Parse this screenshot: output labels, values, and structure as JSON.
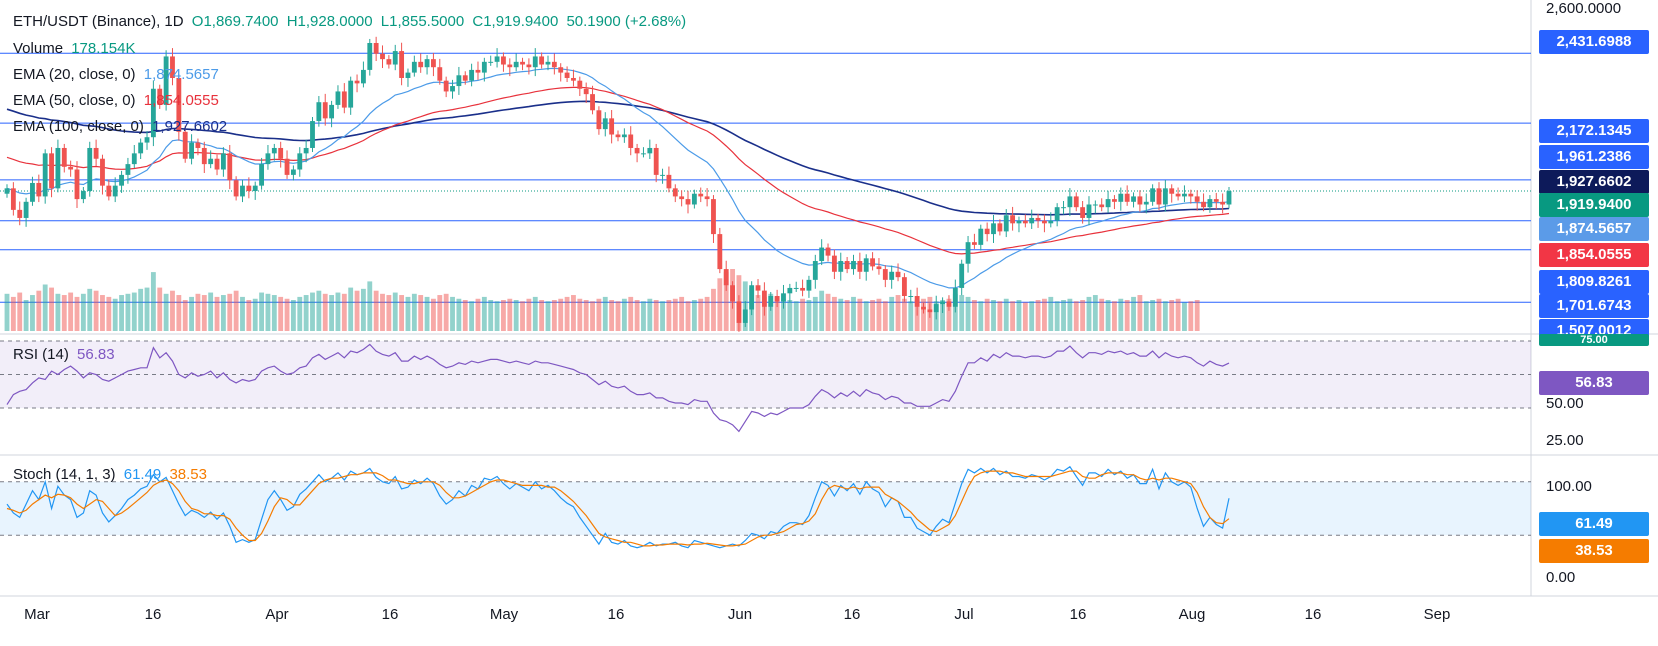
{
  "header": {
    "symbol": "ETH/USDT (Binance), 1D",
    "open": "O1,869.7400",
    "high": "H1,928.0000",
    "low": "L1,855.5000",
    "close": "C1,919.9400",
    "change": "50.1900 (+2.68%)"
  },
  "legend": {
    "volume_label": "Volume",
    "volume_value": "178.154K",
    "ema20_label": "EMA (20, close, 0)",
    "ema20_value": "1,874.5657",
    "ema50_label": "EMA (50, close, 0)",
    "ema50_value": "1,854.0555",
    "ema100_label": "EMA (100, close, 0)",
    "ema100_value": "1,927.6602",
    "rsi_label": "RSI (14)",
    "rsi_value": "56.83",
    "stoch_label": "Stoch (14, 1, 3)",
    "stoch_k_value": "61.49",
    "stoch_d_value": "38.53"
  },
  "price_axis": {
    "top_label": "2,600.0000",
    "tags": [
      {
        "value": "2,431.6988",
        "kind": "level"
      },
      {
        "value": "2,172.1345",
        "kind": "level"
      },
      {
        "value": "1,961.2386",
        "kind": "level"
      },
      {
        "value": "1,927.6602",
        "kind": "ema100"
      },
      {
        "value": "1,919.9400",
        "kind": "close"
      },
      {
        "value": "1,874.5657",
        "kind": "ema20"
      },
      {
        "value": "1,854.0555",
        "kind": "ema50"
      },
      {
        "value": "1,809.8261",
        "kind": "level"
      },
      {
        "value": "1,701.6743",
        "kind": "level"
      },
      {
        "value": "1,507.0012",
        "kind": "level"
      }
    ],
    "volume_tag": "75.00"
  },
  "rsi_axis": {
    "tick_75": "75.00",
    "tick_50": "50.00",
    "tick_25": "25.00",
    "tag": "56.83"
  },
  "stoch_axis": {
    "tick_100": "100.00",
    "tick_0": "0.00",
    "k_tag": "61.49",
    "d_tag": "38.53"
  },
  "time_axis": [
    "Mar",
    "16",
    "Apr",
    "16",
    "May",
    "16",
    "Jun",
    "16",
    "Jul",
    "16",
    "Aug",
    "16",
    "Sep"
  ],
  "colors": {
    "up": "#26a69a",
    "down": "#ef5350",
    "ema20": "#4c9be8",
    "ema50": "#e8323c",
    "ema100": "#1a2f8a",
    "rsi": "#7e57c2",
    "stoch_k": "#2196f3",
    "stoch_d": "#f57c00",
    "level_tag": "#2962ff",
    "close_tag": "#089981",
    "ema100_tag": "#0d1a5a",
    "ema20_tag": "#5b9be8",
    "ema50_tag": "#f23645"
  },
  "chart_data": [
    {
      "type": "candlestick",
      "title": "ETH/USDT (Binance), 1D",
      "ylim": [
        1400,
        2600
      ],
      "horizontal_levels": [
        2431.6988,
        2172.1345,
        1961.2386,
        1809.8261,
        1701.6743,
        1507.0012
      ],
      "close_series": [
        1930,
        1850,
        1820,
        1880,
        1950,
        1900,
        2060,
        1930,
        2080,
        2010,
        2000,
        1890,
        1920,
        2080,
        2040,
        1940,
        1900,
        1940,
        1980,
        2020,
        2060,
        2100,
        2120,
        2300,
        2240,
        2420,
        2340,
        2140,
        2040,
        2100,
        2080,
        2020,
        2040,
        2000,
        2060,
        1960,
        1900,
        1940,
        1920,
        1940,
        2020,
        2060,
        2080,
        2040,
        1980,
        2000,
        2060,
        2080,
        2180,
        2250,
        2190,
        2240,
        2290,
        2230,
        2330,
        2320,
        2370,
        2470,
        2430,
        2410,
        2390,
        2440,
        2340,
        2360,
        2400,
        2380,
        2410,
        2380,
        2330,
        2290,
        2310,
        2350,
        2330,
        2370,
        2360,
        2400,
        2400,
        2420,
        2390,
        2380,
        2400,
        2390,
        2380,
        2420,
        2390,
        2400,
        2380,
        2360,
        2340,
        2330,
        2300,
        2280,
        2220,
        2150,
        2190,
        2130,
        2120,
        2130,
        2080,
        2060,
        2060,
        2080,
        1980,
        1980,
        1930,
        1900,
        1890,
        1870,
        1910,
        1900,
        1890,
        1760,
        1630,
        1570,
        1510,
        1430,
        1480,
        1570,
        1550,
        1490,
        1530,
        1510,
        1540,
        1560,
        1560,
        1550,
        1590,
        1660,
        1710,
        1680,
        1620,
        1660,
        1630,
        1660,
        1620,
        1670,
        1640,
        1630,
        1590,
        1620,
        1600,
        1530,
        1530,
        1490,
        1480,
        1470,
        1500,
        1510,
        1490,
        1560,
        1650,
        1730,
        1720,
        1780,
        1760,
        1800,
        1770,
        1830,
        1800,
        1810,
        1800,
        1820,
        1810,
        1800,
        1810,
        1860,
        1860,
        1900,
        1860,
        1820,
        1870,
        1870,
        1860,
        1890,
        1880,
        1910,
        1880,
        1900,
        1870,
        1880,
        1930,
        1870,
        1930,
        1910,
        1900,
        1910,
        1900,
        1880,
        1860,
        1890,
        1880,
        1870,
        1919.94
      ]
    },
    {
      "type": "bar",
      "title": "Volume",
      "values": [
        60,
        55,
        62,
        50,
        58,
        65,
        75,
        70,
        60,
        58,
        62,
        55,
        60,
        68,
        65,
        58,
        55,
        52,
        58,
        60,
        62,
        68,
        70,
        95,
        70,
        60,
        65,
        58,
        50,
        55,
        60,
        58,
        62,
        55,
        58,
        60,
        65,
        55,
        50,
        52,
        62,
        60,
        58,
        55,
        52,
        50,
        55,
        58,
        62,
        65,
        60,
        58,
        62,
        60,
        70,
        65,
        68,
        80,
        65,
        60,
        58,
        62,
        58,
        55,
        60,
        58,
        55,
        52,
        58,
        60,
        55,
        52,
        50,
        48,
        52,
        55,
        50,
        48,
        50,
        52,
        50,
        48,
        52,
        55,
        50,
        48,
        50,
        52,
        55,
        58,
        52,
        50,
        48,
        52,
        55,
        50,
        48,
        52,
        55,
        50,
        48,
        52,
        50,
        48,
        50,
        52,
        55,
        48,
        50,
        52,
        55,
        68,
        85,
        95,
        100,
        90,
        80,
        70,
        58,
        55,
        60,
        55,
        52,
        50,
        48,
        52,
        50,
        55,
        65,
        60,
        55,
        52,
        50,
        55,
        52,
        48,
        50,
        52,
        48,
        55,
        58,
        52,
        48,
        50,
        52,
        55,
        48,
        50,
        52,
        60,
        58,
        55,
        50,
        48,
        52,
        50,
        48,
        52,
        48,
        50,
        46,
        48,
        50,
        52,
        55,
        48,
        50,
        52,
        48,
        50,
        55,
        58,
        52,
        50,
        48,
        52,
        50,
        55,
        58,
        48,
        50,
        52,
        48,
        50,
        52,
        46,
        48,
        50
      ]
    },
    {
      "type": "line",
      "title": "RSI (14)",
      "ylim": [
        0,
        100
      ],
      "reference_lines": [
        70,
        50,
        30
      ],
      "values": [
        32,
        38,
        40,
        41,
        45,
        48,
        47,
        52,
        50,
        53,
        55,
        52,
        48,
        51,
        50,
        47,
        46,
        48,
        50,
        52,
        53,
        54,
        54,
        66,
        60,
        63,
        58,
        50,
        48,
        51,
        49,
        50,
        52,
        48,
        51,
        47,
        45,
        47,
        46,
        47,
        52,
        54,
        55,
        52,
        50,
        51,
        54,
        55,
        60,
        62,
        59,
        61,
        63,
        60,
        64,
        63,
        65,
        68,
        64,
        62,
        61,
        63,
        58,
        58,
        61,
        59,
        61,
        59,
        56,
        54,
        55,
        57,
        56,
        58,
        57,
        58,
        59,
        59,
        58,
        57,
        58,
        57,
        56,
        58,
        57,
        57,
        56,
        55,
        54,
        53,
        51,
        50,
        47,
        44,
        46,
        43,
        42,
        43,
        40,
        38,
        38,
        39,
        36,
        36,
        34,
        33,
        33,
        32,
        35,
        34,
        34,
        27,
        23,
        22,
        20,
        16,
        22,
        28,
        27,
        25,
        27,
        26,
        28,
        30,
        30,
        30,
        32,
        37,
        41,
        39,
        36,
        39,
        37,
        40,
        37,
        41,
        39,
        38,
        35,
        37,
        36,
        33,
        33,
        31,
        31,
        31,
        33,
        35,
        34,
        40,
        49,
        57,
        57,
        60,
        58,
        62,
        60,
        63,
        61,
        61,
        60,
        61,
        61,
        60,
        61,
        64,
        64,
        67,
        63,
        60,
        63,
        63,
        62,
        64,
        63,
        64,
        62,
        63,
        61,
        61,
        64,
        60,
        63,
        61,
        60,
        61,
        60,
        57,
        55,
        58,
        56,
        55,
        56.83
      ]
    },
    {
      "type": "line",
      "title": "Stoch (14, 1, 3)",
      "ylim": [
        0,
        100
      ],
      "reference_lines": [
        80,
        20
      ],
      "series": [
        {
          "name": "61.49",
          "values": [
            55,
            45,
            40,
            55,
            70,
            60,
            80,
            50,
            75,
            65,
            60,
            40,
            45,
            70,
            65,
            45,
            35,
            42,
            50,
            60,
            65,
            72,
            75,
            88,
            80,
            85,
            70,
            55,
            42,
            48,
            45,
            40,
            46,
            38,
            45,
            30,
            12,
            15,
            12,
            15,
            38,
            60,
            70,
            60,
            48,
            52,
            66,
            72,
            80,
            88,
            80,
            84,
            90,
            82,
            92,
            88,
            90,
            95,
            85,
            80,
            78,
            86,
            72,
            74,
            82,
            78,
            84,
            78,
            64,
            55,
            60,
            70,
            64,
            76,
            72,
            84,
            82,
            86,
            78,
            72,
            78,
            74,
            70,
            80,
            72,
            76,
            70,
            62,
            56,
            52,
            40,
            30,
            20,
            10,
            22,
            12,
            10,
            14,
            8,
            6,
            8,
            12,
            8,
            10,
            10,
            12,
            8,
            6,
            14,
            12,
            10,
            8,
            6,
            8,
            10,
            8,
            14,
            22,
            20,
            16,
            24,
            22,
            30,
            34,
            34,
            32,
            42,
            62,
            80,
            76,
            64,
            76,
            70,
            78,
            66,
            80,
            72,
            68,
            52,
            62,
            58,
            40,
            40,
            28,
            24,
            20,
            30,
            38,
            34,
            56,
            78,
            94,
            90,
            95,
            90,
            95,
            88,
            92,
            86,
            86,
            84,
            88,
            86,
            82,
            86,
            94,
            92,
            97,
            86,
            76,
            90,
            90,
            86,
            94,
            88,
            92,
            84,
            88,
            78,
            78,
            94,
            72,
            90,
            80,
            76,
            80,
            74,
            50,
            30,
            40,
            32,
            28,
            61.49
          ]
        },
        {
          "name": "38.53",
          "values": [
            50,
            48,
            45,
            48,
            55,
            60,
            65,
            62,
            66,
            65,
            62,
            55,
            50,
            55,
            60,
            58,
            50,
            42,
            45,
            50,
            56,
            62,
            68,
            76,
            80,
            82,
            78,
            70,
            58,
            50,
            48,
            44,
            44,
            42,
            42,
            38,
            28,
            20,
            14,
            14,
            22,
            36,
            52,
            62,
            60,
            54,
            54,
            62,
            70,
            78,
            82,
            84,
            84,
            86,
            88,
            88,
            90,
            90,
            90,
            87,
            82,
            82,
            80,
            78,
            78,
            80,
            80,
            80,
            76,
            68,
            62,
            62,
            64,
            68,
            72,
            76,
            80,
            82,
            82,
            80,
            78,
            76,
            76,
            76,
            76,
            74,
            74,
            70,
            64,
            58,
            50,
            42,
            32,
            22,
            18,
            16,
            14,
            12,
            12,
            10,
            8,
            8,
            9,
            9,
            10,
            10,
            10,
            9,
            10,
            10,
            11,
            10,
            9,
            8,
            8,
            9,
            10,
            14,
            18,
            20,
            20,
            22,
            24,
            28,
            32,
            33,
            36,
            44,
            60,
            72,
            76,
            74,
            72,
            74,
            72,
            74,
            74,
            74,
            66,
            62,
            58,
            52,
            46,
            38,
            32,
            26,
            24,
            28,
            32,
            42,
            58,
            74,
            86,
            90,
            92,
            92,
            92,
            90,
            90,
            88,
            86,
            86,
            86,
            86,
            86,
            88,
            90,
            92,
            92,
            86,
            84,
            84,
            88,
            90,
            90,
            90,
            88,
            88,
            84,
            82,
            84,
            82,
            84,
            84,
            82,
            80,
            78,
            68,
            52,
            40,
            34,
            33,
            38.53
          ]
        }
      ]
    }
  ]
}
